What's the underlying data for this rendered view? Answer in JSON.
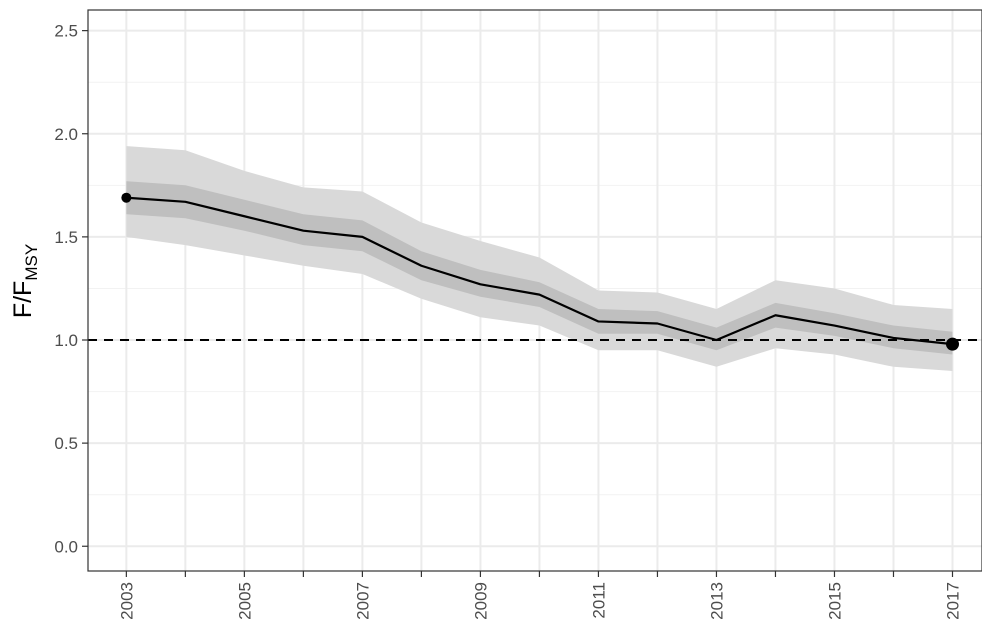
{
  "chart_data": {
    "type": "line",
    "title": "",
    "xlabel": "",
    "ylabel": "F/F",
    "ylabel_subscript": "MSY",
    "xlim": [
      2002.35,
      2017.5
    ],
    "ylim": [
      -0.12,
      2.6
    ],
    "y_ticks": [
      0.0,
      0.5,
      1.0,
      1.5,
      2.0,
      2.5
    ],
    "y_tick_labels": [
      "0.0",
      "0.5",
      "1.0",
      "1.5",
      "2.0",
      "2.5"
    ],
    "x_ticks": [
      2003,
      2004,
      2005,
      2006,
      2007,
      2008,
      2009,
      2010,
      2011,
      2012,
      2013,
      2014,
      2015,
      2016,
      2017
    ],
    "x_tick_labels": [
      "2003",
      "",
      "2005",
      "",
      "2007",
      "",
      "2009",
      "",
      "2011",
      "",
      "2013",
      "",
      "2015",
      "",
      "2017"
    ],
    "grid": true,
    "reference_line": {
      "y": 1.0,
      "style": "dashed",
      "color": "#000000"
    },
    "x": [
      2003,
      2004,
      2005,
      2006,
      2007,
      2008,
      2009,
      2010,
      2011,
      2012,
      2013,
      2014,
      2015,
      2016,
      2017
    ],
    "series": [
      {
        "values": [
          1.69,
          1.67,
          1.6,
          1.53,
          1.5,
          1.36,
          1.27,
          1.22,
          1.09,
          1.08,
          1.0,
          1.12,
          1.07,
          1.01,
          0.98
        ],
        "color": "#000000"
      }
    ],
    "band_outer": {
      "upper": [
        1.94,
        1.92,
        1.82,
        1.74,
        1.72,
        1.57,
        1.48,
        1.4,
        1.24,
        1.23,
        1.15,
        1.29,
        1.25,
        1.17,
        1.15
      ],
      "lower": [
        1.5,
        1.46,
        1.41,
        1.36,
        1.32,
        1.2,
        1.11,
        1.07,
        0.95,
        0.95,
        0.87,
        0.96,
        0.93,
        0.87,
        0.85
      ],
      "color": "#d9d9d9"
    },
    "band_inner": {
      "upper": [
        1.77,
        1.75,
        1.68,
        1.61,
        1.58,
        1.43,
        1.34,
        1.28,
        1.15,
        1.14,
        1.06,
        1.18,
        1.13,
        1.07,
        1.04
      ],
      "lower": [
        1.61,
        1.59,
        1.53,
        1.46,
        1.43,
        1.29,
        1.21,
        1.16,
        1.03,
        1.03,
        0.95,
        1.06,
        1.02,
        0.96,
        0.93
      ],
      "color": "#bfbfbf"
    },
    "highlight_points": [
      {
        "x": 2003,
        "y": 1.69
      },
      {
        "x": 2017,
        "y": 0.98
      }
    ]
  }
}
